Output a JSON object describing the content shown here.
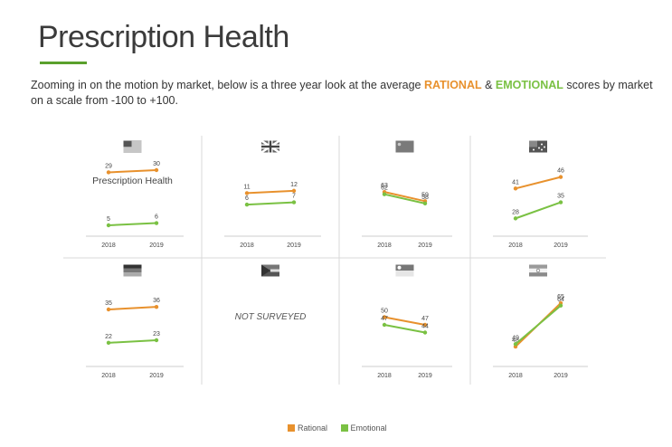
{
  "header": {
    "title": "Prescription Health",
    "subtitle_pre": "Zooming in on the motion by market, below is a three year look at the average ",
    "subtitle_rational": "RATIONAL",
    "subtitle_amp": " & ",
    "subtitle_emotional": "EMOTIONAL",
    "subtitle_post": " scores by market on a scale from -100 to +100."
  },
  "colors": {
    "rational": "#e8912d",
    "emotional": "#7ac143",
    "divider": "#d9d9d9",
    "axis": "#cccccc"
  },
  "legend": {
    "rational": "Rational",
    "emotional": "Emotional"
  },
  "chart_data": [
    {
      "type": "line",
      "market_icon": "us-flag-icon",
      "label": "Prescription Health",
      "x": [
        "2018",
        "2019"
      ],
      "series": [
        {
          "name": "Rational",
          "values": [
            29,
            30
          ]
        },
        {
          "name": "Emotional",
          "values": [
            5,
            6
          ]
        }
      ]
    },
    {
      "type": "line",
      "market_icon": "uk-flag-icon",
      "x": [
        "2018",
        "2019"
      ],
      "series": [
        {
          "name": "Rational",
          "values": [
            11,
            12
          ]
        },
        {
          "name": "Emotional",
          "values": [
            6,
            7
          ]
        }
      ]
    },
    {
      "type": "line",
      "market_icon": "china-flag-icon",
      "x": [
        "2018",
        "2019"
      ],
      "series": [
        {
          "name": "Rational",
          "values": [
            63,
            59
          ]
        },
        {
          "name": "Emotional",
          "values": [
            62,
            58
          ]
        }
      ]
    },
    {
      "type": "line",
      "market_icon": "australia-flag-icon",
      "x": [
        "2018",
        "2019"
      ],
      "series": [
        {
          "name": "Rational",
          "values": [
            41,
            46
          ]
        },
        {
          "name": "Emotional",
          "values": [
            28,
            35
          ]
        }
      ]
    },
    {
      "type": "line",
      "market_icon": "germany-flag-icon",
      "x": [
        "2018",
        "2019"
      ],
      "series": [
        {
          "name": "Rational",
          "values": [
            35,
            36
          ]
        },
        {
          "name": "Emotional",
          "values": [
            22,
            23
          ]
        }
      ]
    },
    {
      "type": "line",
      "market_icon": "south-africa-flag-icon",
      "not_surveyed": "NOT SURVEYED",
      "x": [],
      "series": []
    },
    {
      "type": "line",
      "market_icon": "singapore-flag-icon",
      "x": [
        "2018",
        "2019"
      ],
      "series": [
        {
          "name": "Rational",
          "values": [
            50,
            47
          ]
        },
        {
          "name": "Emotional",
          "values": [
            47,
            44
          ]
        }
      ]
    },
    {
      "type": "line",
      "market_icon": "india-flag-icon",
      "x": [
        "2018",
        "2019"
      ],
      "series": [
        {
          "name": "Rational",
          "values": [
            48,
            65
          ]
        },
        {
          "name": "Emotional",
          "values": [
            49,
            64
          ]
        }
      ]
    }
  ]
}
